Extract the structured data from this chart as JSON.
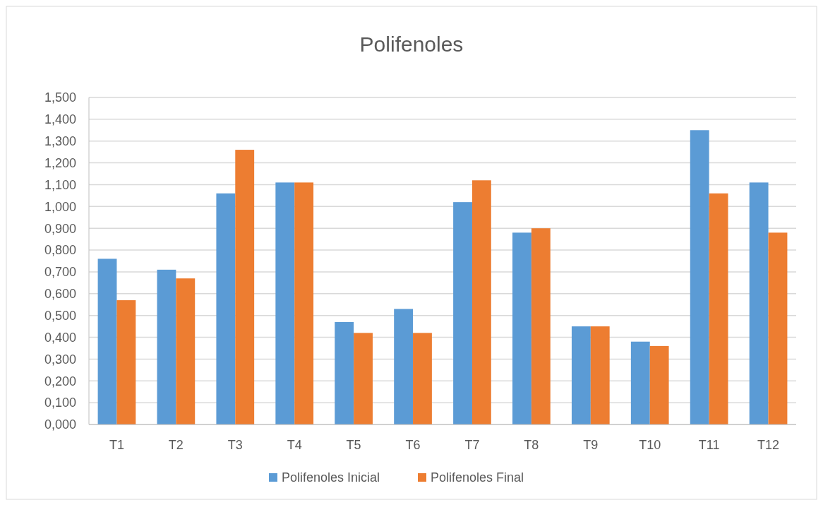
{
  "chart_data": {
    "type": "bar",
    "title": "Polifenoles",
    "categories": [
      "T1",
      "T2",
      "T3",
      "T4",
      "T5",
      "T6",
      "T7",
      "T8",
      "T9",
      "T10",
      "T11",
      "T12"
    ],
    "series": [
      {
        "name": "Polifenoles Inicial",
        "color": "#5b9bd5",
        "values": [
          0.76,
          0.71,
          1.06,
          1.11,
          0.47,
          0.53,
          1.02,
          0.88,
          0.45,
          0.38,
          1.35,
          1.11
        ]
      },
      {
        "name": "Polifenoles Final",
        "color": "#ed7d31",
        "values": [
          0.57,
          0.67,
          1.26,
          1.11,
          0.42,
          0.42,
          1.12,
          0.9,
          0.45,
          0.36,
          1.06,
          0.88
        ]
      }
    ],
    "ylim": [
      0,
      1.5
    ],
    "yticks": [
      {
        "value": 0,
        "label": "0,000"
      },
      {
        "value": 0.1,
        "label": "0,100"
      },
      {
        "value": 0.2,
        "label": "0,200"
      },
      {
        "value": 0.3,
        "label": "0,300"
      },
      {
        "value": 0.4,
        "label": "0,400"
      },
      {
        "value": 0.5,
        "label": "0,500"
      },
      {
        "value": 0.6,
        "label": "0,600"
      },
      {
        "value": 0.7,
        "label": "0,700"
      },
      {
        "value": 0.8,
        "label": "0,800"
      },
      {
        "value": 0.9,
        "label": "0,900"
      },
      {
        "value": 1,
        "label": "1,000"
      },
      {
        "value": 1.1,
        "label": "1,100"
      },
      {
        "value": 1.2,
        "label": "1,200"
      },
      {
        "value": 1.3,
        "label": "1,300"
      },
      {
        "value": 1.4,
        "label": "1,400"
      },
      {
        "value": 1.5,
        "label": "1,500"
      }
    ],
    "grid": "y",
    "legend": "bottom"
  }
}
